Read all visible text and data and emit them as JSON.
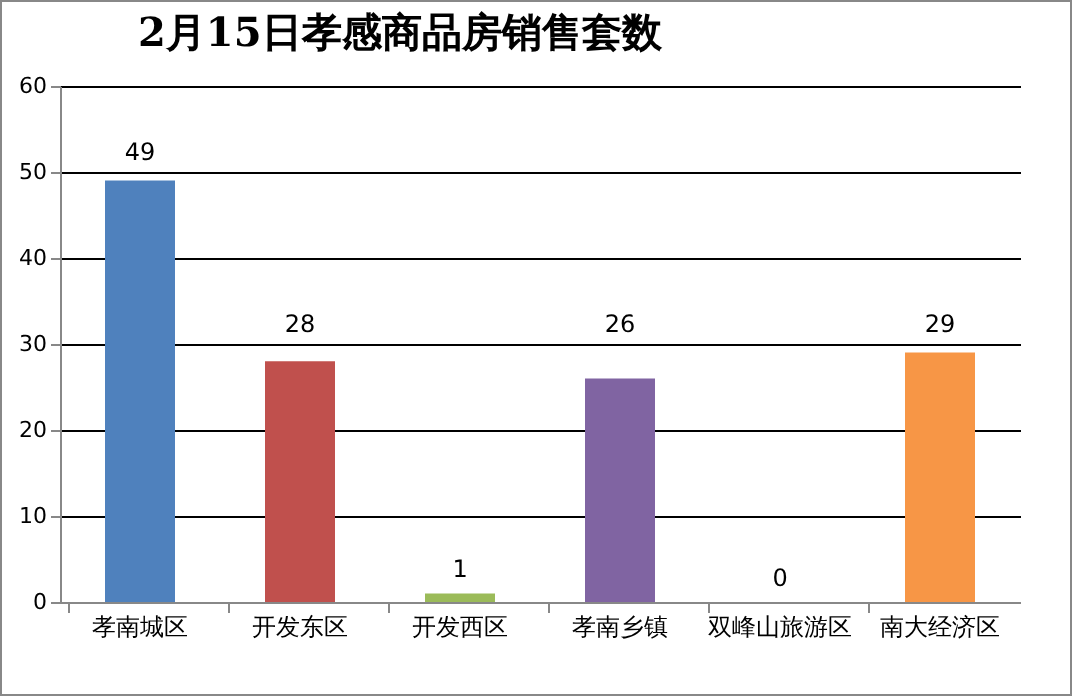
{
  "chart_data": {
    "type": "bar",
    "title": "2月15日孝感商品房销售套数",
    "categories": [
      "孝南城区",
      "开发东区",
      "开发西区",
      "孝南乡镇",
      "双峰山旅游区",
      "南大经济区"
    ],
    "values": [
      49,
      28,
      1,
      26,
      0,
      29
    ],
    "colors": [
      "#4f81bd",
      "#c0504d",
      "#9bbb59",
      "#8064a2",
      "#4bacc6",
      "#f79646"
    ],
    "ylim": [
      0,
      60
    ],
    "yticks": [
      0,
      10,
      20,
      30,
      40,
      50,
      60
    ],
    "grid": true,
    "data_labels": true
  }
}
